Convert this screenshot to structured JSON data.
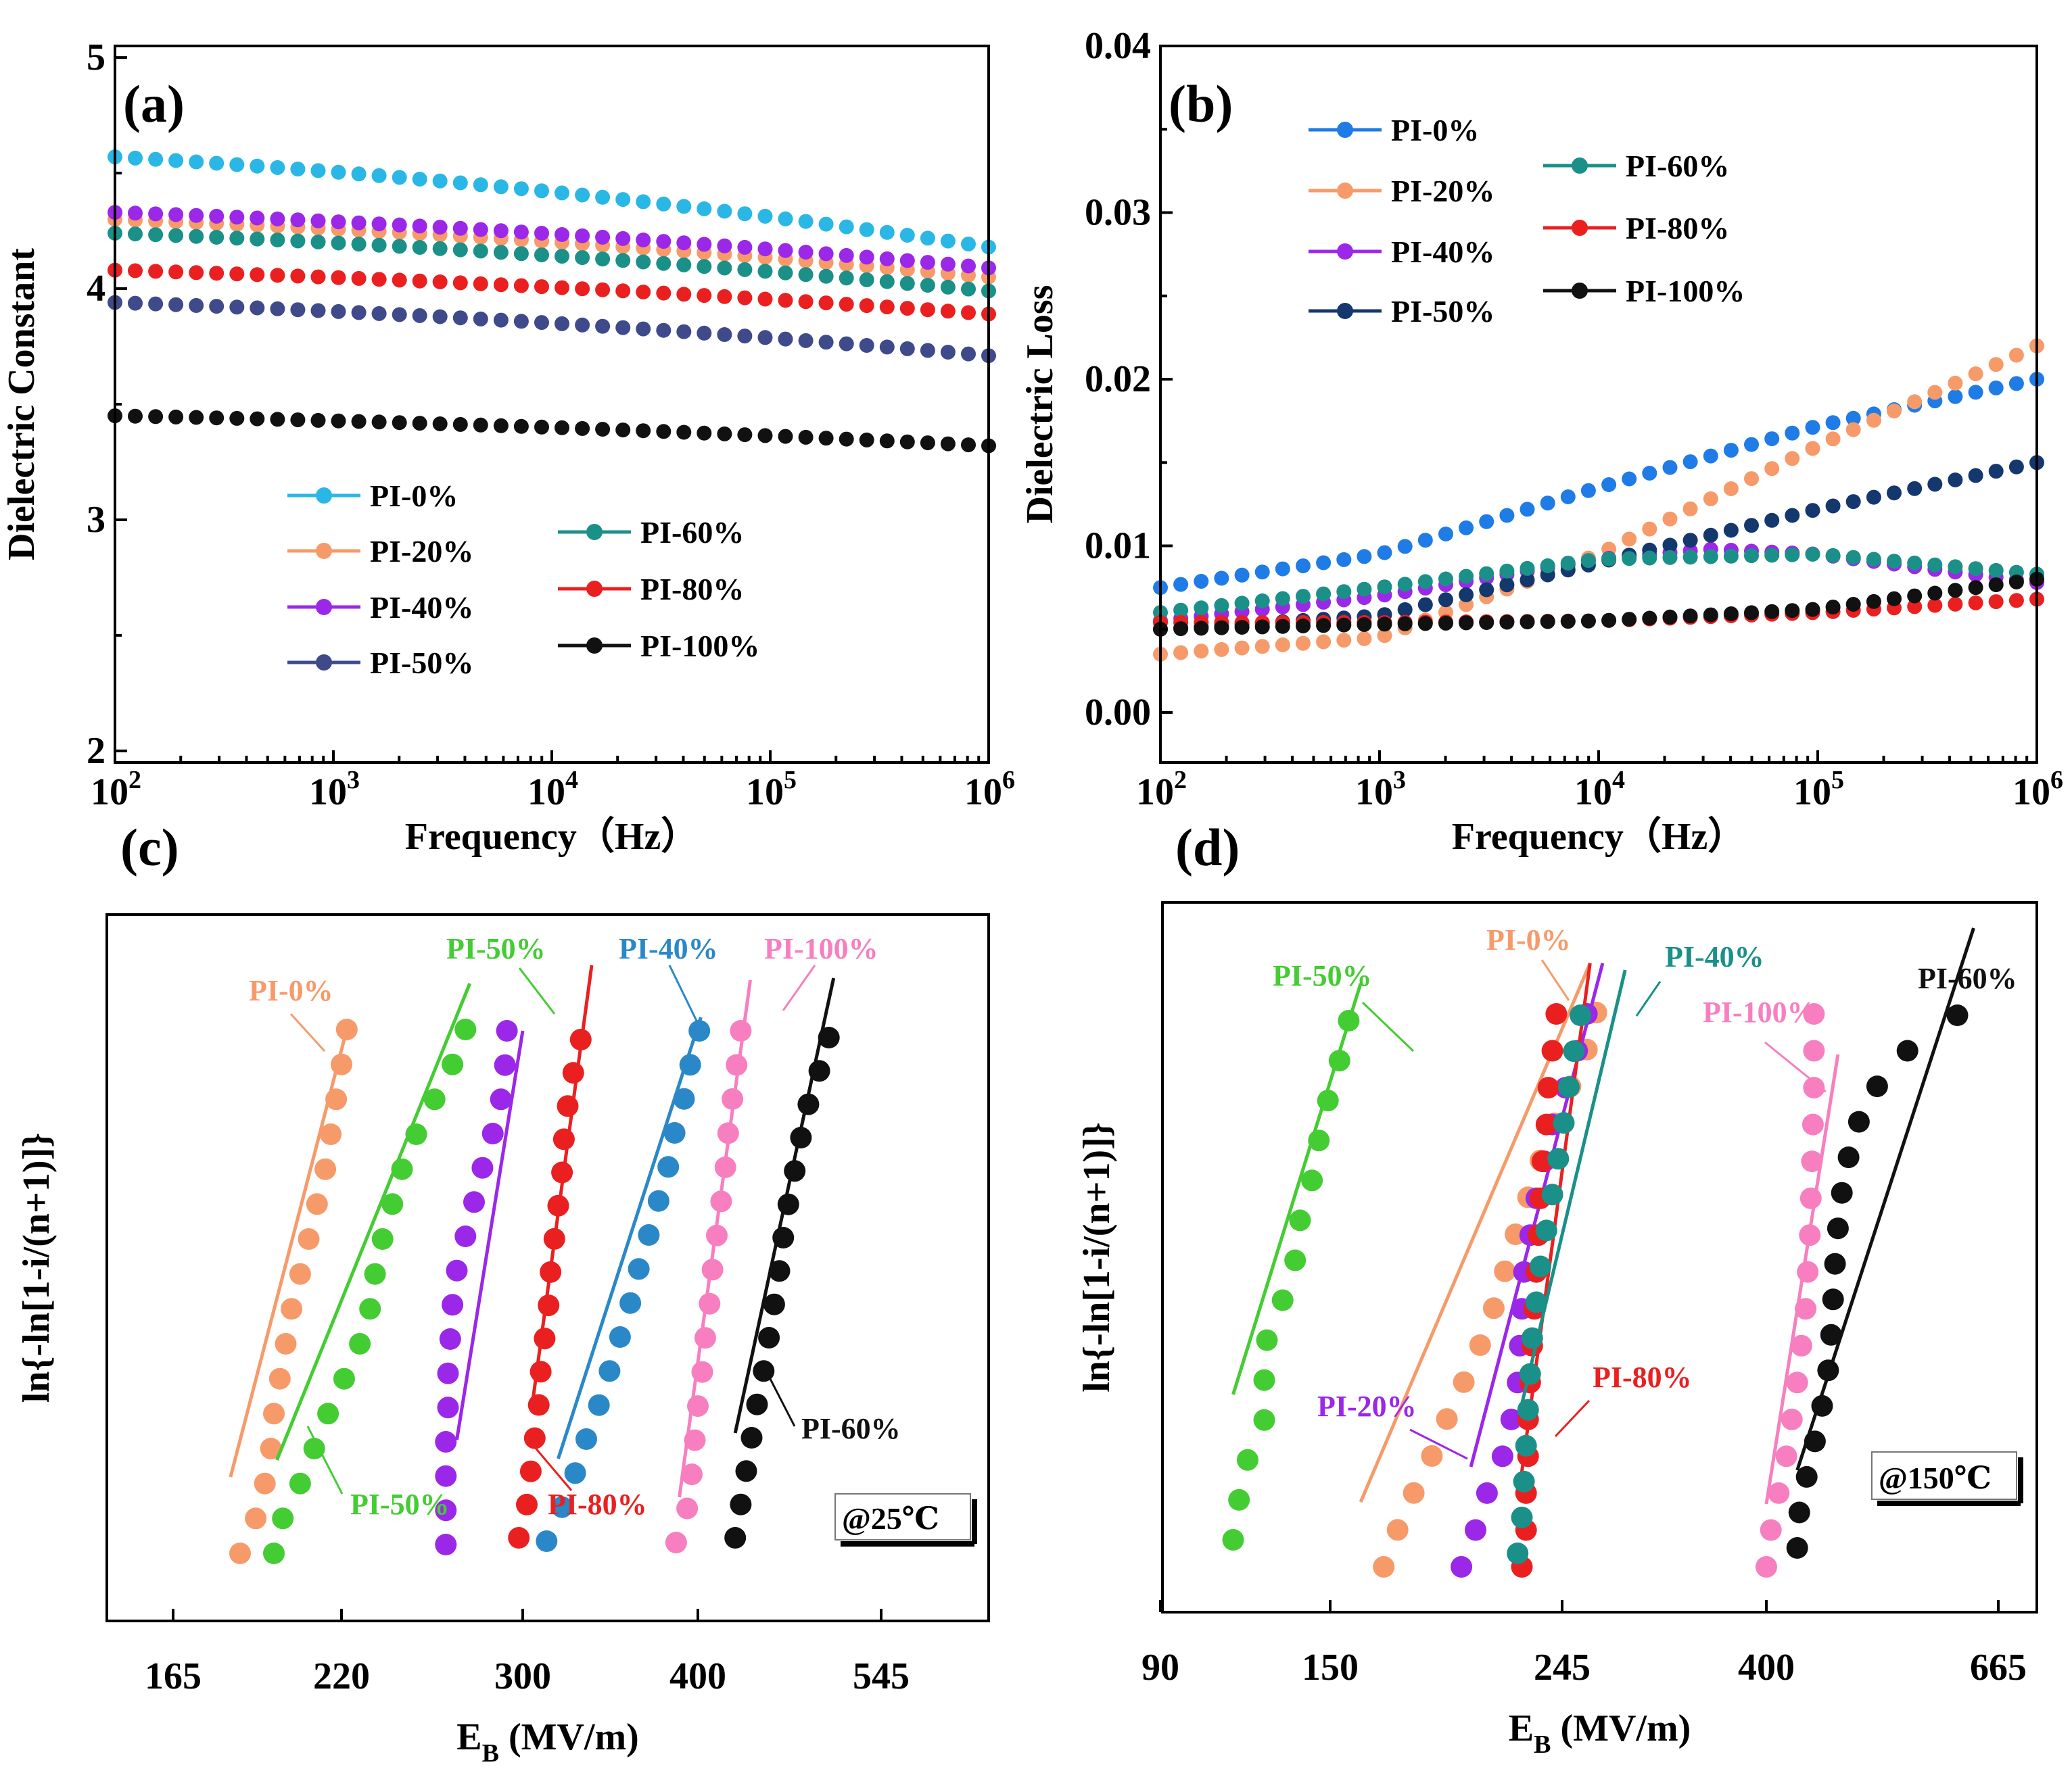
{
  "figure": {
    "temp_c": "@25℃",
    "temp_d": "@150℃"
  },
  "chart_data": [
    {
      "panel": "(a)",
      "type": "scatter",
      "xlabel": "Frequency（Hz）",
      "ylabel": "Dielectric Constant",
      "xscale": "log",
      "xlim": [
        100,
        1000000
      ],
      "ylim": [
        1.95,
        5.05
      ],
      "xticks": [
        {
          "v": 100,
          "base": "10",
          "exp": "2"
        },
        {
          "v": 1000,
          "base": "10",
          "exp": "3"
        },
        {
          "v": 10000,
          "base": "10",
          "exp": "4"
        },
        {
          "v": 100000,
          "base": "10",
          "exp": "5"
        },
        {
          "v": 1000000,
          "base": "10",
          "exp": "6"
        }
      ],
      "yticks": [
        {
          "v": 2,
          "label": "2"
        },
        {
          "v": 3,
          "label": "3"
        },
        {
          "v": 4,
          "label": "4"
        },
        {
          "v": 5,
          "label": "5"
        }
      ],
      "series": [
        {
          "name": "PI-0%",
          "color": "#2ab7e6",
          "start": 4.57,
          "end": 4.18
        },
        {
          "name": "PI-20%",
          "color": "#f79a6a",
          "start": 4.3,
          "end": 4.05
        },
        {
          "name": "PI-40%",
          "color": "#9b27e8",
          "start": 4.33,
          "end": 4.09
        },
        {
          "name": "PI-50%",
          "color": "#3e4a8a",
          "start": 3.94,
          "end": 3.71
        },
        {
          "name": "PI-60%",
          "color": "#1a9088",
          "start": 4.24,
          "end": 3.99
        },
        {
          "name": "PI-80%",
          "color": "#ea2020",
          "start": 4.08,
          "end": 3.89
        },
        {
          "name": "PI-100%",
          "color": "#111111",
          "start": 3.45,
          "end": 3.32
        }
      ]
    },
    {
      "panel": "(b)",
      "type": "scatter",
      "xlabel": "Frequency（Hz）",
      "ylabel": "Dielectric Loss",
      "xscale": "log",
      "xlim": [
        100,
        1000000
      ],
      "ylim": [
        -0.003,
        0.04
      ],
      "xticks": [
        {
          "v": 100,
          "base": "10",
          "exp": "2"
        },
        {
          "v": 1000,
          "base": "10",
          "exp": "3"
        },
        {
          "v": 10000,
          "base": "10",
          "exp": "4"
        },
        {
          "v": 100000,
          "base": "10",
          "exp": "5"
        },
        {
          "v": 1000000,
          "base": "10",
          "exp": "6"
        }
      ],
      "yticks": [
        {
          "v": 0.0,
          "label": "0.00"
        },
        {
          "v": 0.01,
          "label": "0.01"
        },
        {
          "v": 0.02,
          "label": "0.02"
        },
        {
          "v": 0.03,
          "label": "0.03"
        },
        {
          "v": 0.04,
          "label": "0.04"
        }
      ],
      "series": [
        {
          "name": "PI-0%",
          "color": "#1f7be6",
          "points": [
            [
              2,
              0.0075
            ],
            [
              3,
              0.0095
            ],
            [
              4,
              0.0135
            ],
            [
              5,
              0.0172
            ],
            [
              6,
              0.02
            ]
          ]
        },
        {
          "name": "PI-20%",
          "color": "#f79a6a",
          "points": [
            [
              2,
              0.0035
            ],
            [
              3,
              0.0045
            ],
            [
              4,
              0.0095
            ],
            [
              5,
              0.016
            ],
            [
              6,
              0.022
            ]
          ]
        },
        {
          "name": "PI-40%",
          "color": "#9b27e8",
          "points": [
            [
              2,
              0.0055
            ],
            [
              3,
              0.007
            ],
            [
              4,
              0.0092
            ],
            [
              4.5,
              0.0098
            ],
            [
              5,
              0.0095
            ],
            [
              6,
              0.0078
            ]
          ]
        },
        {
          "name": "PI-50%",
          "color": "#14386e",
          "points": [
            [
              2,
              0.005
            ],
            [
              3,
              0.0058
            ],
            [
              4,
              0.009
            ],
            [
              5,
              0.0122
            ],
            [
              6,
              0.015
            ]
          ]
        },
        {
          "name": "PI-60%",
          "color": "#1a9088",
          "points": [
            [
              2,
              0.006
            ],
            [
              3,
              0.0075
            ],
            [
              4,
              0.0092
            ],
            [
              5,
              0.0095
            ],
            [
              6,
              0.0083
            ]
          ]
        },
        {
          "name": "PI-80%",
          "color": "#ea2020",
          "points": [
            [
              2,
              0.0054
            ],
            [
              3,
              0.0054
            ],
            [
              4,
              0.0055
            ],
            [
              5,
              0.006
            ],
            [
              6,
              0.0068
            ]
          ]
        },
        {
          "name": "PI-100%",
          "color": "#111111",
          "points": [
            [
              2,
              0.005
            ],
            [
              3,
              0.0053
            ],
            [
              4,
              0.0055
            ],
            [
              5,
              0.0062
            ],
            [
              6,
              0.008
            ]
          ]
        }
      ]
    },
    {
      "panel": "(c)",
      "type": "scatter",
      "xlabel": "EB (MV/m)",
      "xlabel_main": "E",
      "xlabel_sub": "B",
      "xlabel_rest": " (MV/m)",
      "ylabel": "ln{-ln[1-i/(n+1)]}",
      "condition": "@25℃",
      "xticks": [
        "165",
        "220",
        "300",
        "400",
        "545"
      ],
      "series": [
        {
          "name": "PI-0%",
          "color": "#f79a6a",
          "x": [
            185,
            190,
            193,
            195,
            196,
            198,
            200,
            202,
            205,
            208,
            211,
            214,
            216,
            218,
            220,
            222
          ],
          "fit": [
            182,
            222
          ]
        },
        {
          "name": "PI-50%",
          "color": "#44cc33",
          "x": [
            196,
            199,
            205,
            210,
            215,
            221,
            227,
            231,
            233,
            236,
            240,
            244,
            250,
            258,
            266,
            272
          ],
          "fit": [
            197,
            274
          ]
        },
        {
          "name": "PI-20%",
          "color": "#9b27e8",
          "x": [
            263,
            263,
            263,
            263,
            264,
            264,
            265,
            266,
            268,
            272,
            276,
            280,
            285,
            289,
            291,
            292
          ],
          "fit": [
            268,
            300
          ]
        },
        {
          "name": "PI-80%",
          "color": "#ea2020",
          "x": [
            298,
            302,
            304,
            306,
            308,
            309,
            311,
            313,
            314,
            316,
            318,
            320,
            321,
            323,
            326,
            330
          ],
          "fit": [
            305,
            336
          ]
        },
        {
          "name": "PI-40%",
          "color": "#2a88c8",
          "x": [
            312,
            320,
            327,
            333,
            340,
            346,
            352,
            358,
            363,
            369,
            375,
            381,
            385,
            391,
            395,
            401
          ],
          "fit": [
            318,
            402
          ]
        },
        {
          "name": "PI-100%",
          "color": "#f77fc0",
          "x": [
            386,
            393,
            396,
            398,
            400,
            403,
            405,
            408,
            410,
            413,
            416,
            419,
            421,
            424,
            427,
            430
          ],
          "fit": [
            388,
            437
          ]
        },
        {
          "name": "PI-60%",
          "color": "#111111",
          "x": [
            426,
            430,
            434,
            438,
            442,
            447,
            451,
            455,
            459,
            462,
            466,
            471,
            476,
            482,
            491,
            499
          ],
          "fit": [
            426,
            503
          ]
        }
      ]
    },
    {
      "panel": "(d)",
      "type": "scatter",
      "xlabel": "EB (MV/m)",
      "xlabel_main": "E",
      "xlabel_sub": "B",
      "xlabel_rest": " (MV/m)",
      "ylabel": "ln{-ln[1-i/(n+1)]}",
      "condition": "@150℃",
      "xticks": [
        "90",
        "150",
        "245",
        "400",
        "665"
      ],
      "series": [
        {
          "name": "PI-50%",
          "color": "#44cc33",
          "x": [
            112,
            114,
            117,
            123,
            123,
            124,
            130,
            135,
            137,
            142,
            145,
            149,
            153,
            156
          ],
          "fit": [
            112,
            160
          ]
        },
        {
          "name": "PI-0%",
          "color": "#f79a6a",
          "x": [
            168,
            173,
            179,
            186,
            192,
            199,
            206,
            212,
            217,
            222,
            228,
            234,
            241,
            250,
            260,
            266
          ],
          "fit": [
            160,
            262
          ]
        },
        {
          "name": "PI-20%",
          "color": "#9b27e8",
          "x": [
            198,
            204,
            209,
            216,
            220,
            223,
            224,
            225,
            226,
            229,
            232,
            236,
            240,
            247,
            254,
            260
          ],
          "fit": [
            202,
            270
          ]
        },
        {
          "name": "PI-80%",
          "color": "#ea2020",
          "x": [
            225,
            227,
            227,
            228,
            228,
            229,
            230,
            231,
            232,
            233,
            234,
            235,
            237,
            238,
            240,
            242
          ],
          "fit": [
            224,
            262
          ]
        },
        {
          "name": "PI-40%",
          "color": "#1a9088",
          "x": [
            223,
            225,
            226,
            227,
            228,
            229,
            230,
            232,
            234,
            237,
            240,
            243,
            246,
            249,
            252,
            256
          ],
          "fit": [
            224,
            285
          ]
        },
        {
          "name": "PI-100%",
          "color": "#f77fc0",
          "x": [
            400,
            404,
            411,
            418,
            423,
            428,
            432,
            436,
            438,
            440,
            441,
            442,
            443,
            444,
            444,
            444
          ],
          "fit": [
            400,
            468
          ]
        },
        {
          "name": "PI-60%",
          "color": "#111111",
          "x": [
            428,
            430,
            437,
            445,
            452,
            458,
            461,
            463,
            465,
            468,
            472,
            479,
            490,
            510,
            545,
            608
          ],
          "fit": [
            428,
            630
          ]
        }
      ]
    }
  ]
}
